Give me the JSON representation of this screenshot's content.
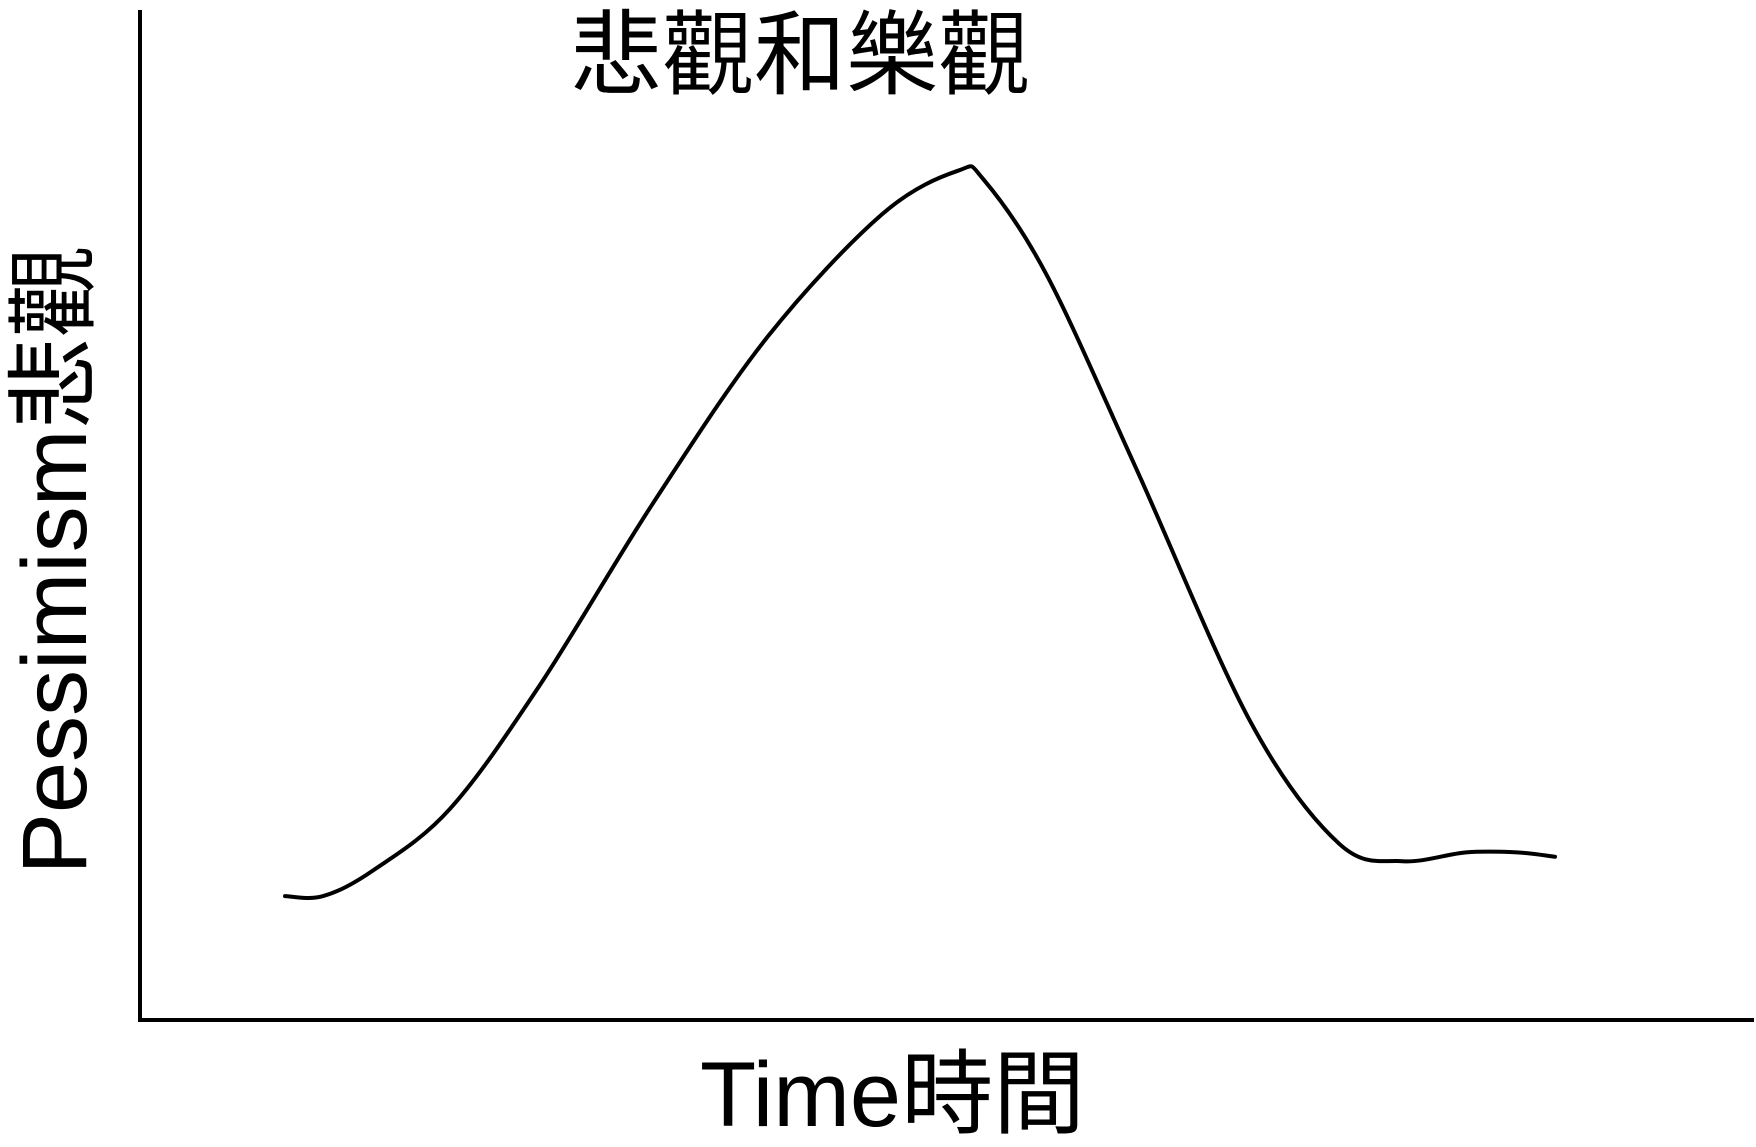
{
  "chart_data": {
    "type": "line",
    "title": "悲觀和樂觀",
    "xlabel": "Time時間",
    "ylabel": "Pessimism悲觀",
    "x_ticks": [],
    "y_ticks": [],
    "grid": false,
    "legend": "none",
    "xlim": [
      0,
      100
    ],
    "ylim": [
      0,
      100
    ],
    "series": [
      {
        "x": [
          0,
          3,
          7,
          13,
          20,
          29,
          38,
          47,
          53,
          55,
          60,
          67,
          76,
          83,
          88,
          93,
          97,
          100
        ],
        "y": [
          12,
          12,
          15,
          22,
          36,
          57,
          76,
          90,
          95,
          94,
          83,
          61,
          32,
          18,
          16,
          17,
          17,
          16.5
        ]
      }
    ],
    "colors": {
      "line": "#000000",
      "axis": "#000000",
      "background": "#ffffff"
    }
  }
}
